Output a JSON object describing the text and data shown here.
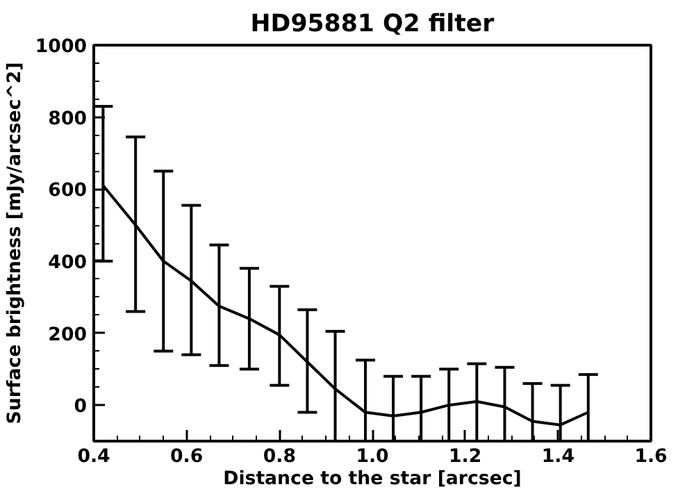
{
  "chart_data": {
    "type": "line",
    "title": "HD95881 Q2 filter",
    "xlabel": "Distance to the star [arcsec]",
    "ylabel": "Surface brightness [mJy/arcsec^2]",
    "x": [
      0.42,
      0.49,
      0.55,
      0.61,
      0.67,
      0.735,
      0.8,
      0.86,
      0.92,
      0.985,
      1.045,
      1.105,
      1.165,
      1.225,
      1.285,
      1.345,
      1.405,
      1.465
    ],
    "series": [
      {
        "color": "#000000",
        "values": [
          610,
          500,
          400,
          345,
          275,
          240,
          195,
          120,
          45,
          -20,
          -30,
          -20,
          0,
          10,
          -5,
          -45,
          -55,
          -20
        ],
        "errors": [
          [
            400,
            830
          ],
          [
            260,
            745
          ],
          [
            150,
            650
          ],
          [
            140,
            555
          ],
          [
            110,
            445
          ],
          [
            100,
            380
          ],
          [
            55,
            330
          ],
          [
            -20,
            265
          ],
          [
            -100,
            205
          ],
          [
            -100,
            125
          ],
          [
            -100,
            80
          ],
          [
            -100,
            80
          ],
          [
            -100,
            100
          ],
          [
            -100,
            115
          ],
          [
            -100,
            105
          ],
          [
            -100,
            60
          ],
          [
            -100,
            55
          ],
          [
            -100,
            85
          ]
        ]
      }
    ],
    "xlim": [
      0.4,
      1.6
    ],
    "xticks": [
      {
        "value": 0.4,
        "label": "0.4"
      },
      {
        "value": 0.6,
        "label": "0.6"
      },
      {
        "value": 0.8,
        "label": "0.8"
      },
      {
        "value": 1.0,
        "label": "1.0"
      },
      {
        "value": 1.2,
        "label": "1.2"
      },
      {
        "value": 1.4,
        "label": "1.4"
      },
      {
        "value": 1.6,
        "label": "1.6"
      }
    ],
    "ylim": [
      -100,
      1000
    ],
    "yticks": [
      0,
      200,
      400,
      600,
      800,
      1000
    ],
    "grid": false,
    "marker": "none",
    "line_style": "solid"
  }
}
